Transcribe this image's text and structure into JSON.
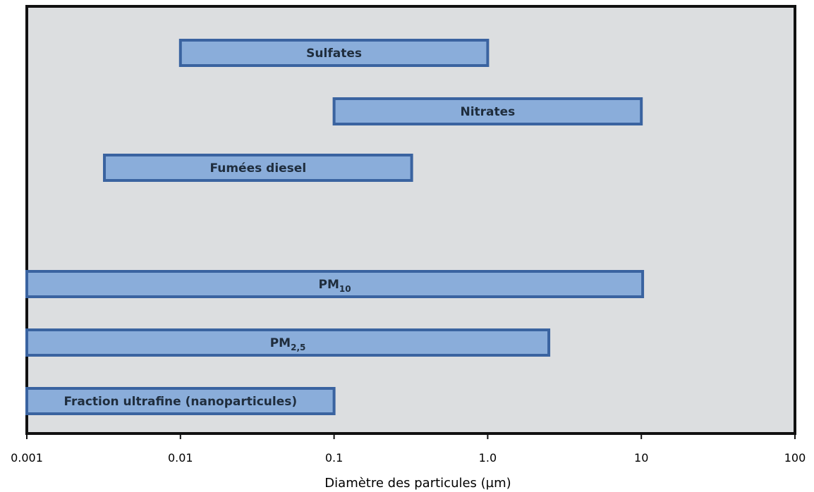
{
  "chart_data": {
    "type": "bar",
    "orientation": "horizontal-range",
    "title": "",
    "xlabel": "Diamètre des particules (µm)",
    "ylabel": "",
    "xscale": "log",
    "xlim": [
      0.001,
      100
    ],
    "grid": false,
    "colors": {
      "plot_bg": "#dcdee0",
      "bar_fill": "#8aadda",
      "bar_stroke": "#3a63a0",
      "frame": "#111111"
    },
    "ticks": [
      {
        "value": 0.001,
        "label": "0.001"
      },
      {
        "value": 0.01,
        "label": "0.01"
      },
      {
        "value": 0.1,
        "label": "0.1"
      },
      {
        "value": 1,
        "label": "1.0"
      },
      {
        "value": 10,
        "label": "10"
      },
      {
        "value": 100,
        "label": "100"
      }
    ],
    "series": [
      {
        "label": "Sulfates",
        "sub": "",
        "start": 0.01,
        "end": 1.0
      },
      {
        "label": "Nitrates",
        "sub": "",
        "start": 0.1,
        "end": 10
      },
      {
        "label": "Fumées diesel",
        "sub": "",
        "start": 0.0032,
        "end": 0.32
      },
      {
        "label": "PM",
        "sub": "10",
        "start": 0.001,
        "end": 10.2
      },
      {
        "label": "PM",
        "sub": "2,5",
        "start": 0.001,
        "end": 2.5
      },
      {
        "label": "Fraction ultrafine (nanoparticules)",
        "sub": "",
        "start": 0.001,
        "end": 0.1
      }
    ]
  }
}
